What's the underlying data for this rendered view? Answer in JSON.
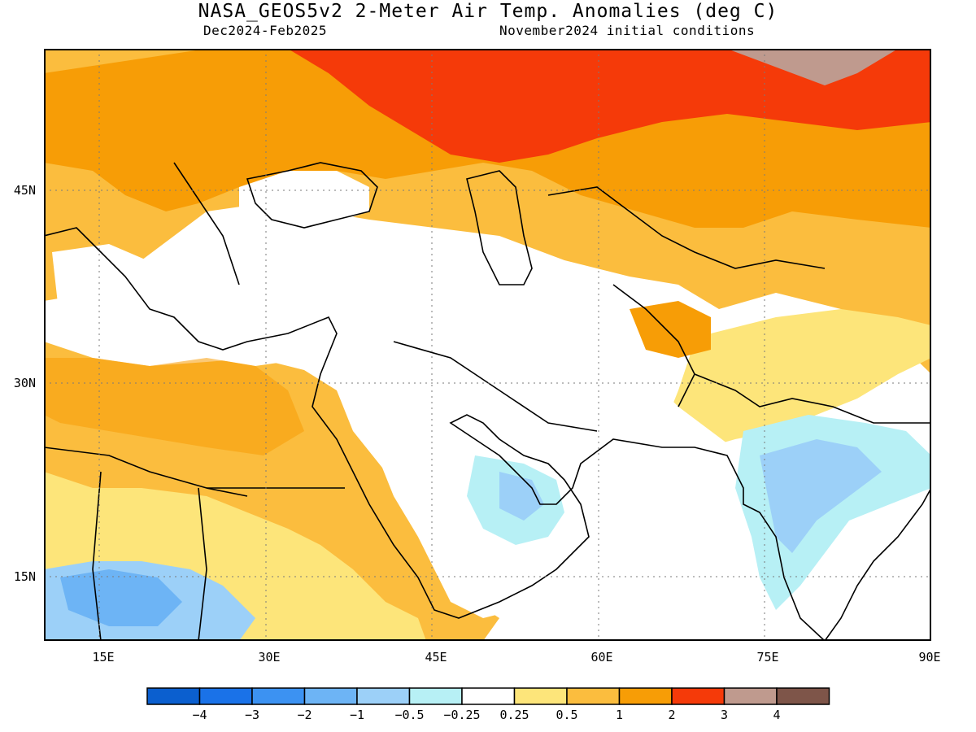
{
  "title": "NASA_GEOS5v2 2-Meter Air Temp. Anomalies (deg C)",
  "subtitle_left": "Dec2024-Feb2025",
  "subtitle_right": "November2024 initial conditions",
  "map": {
    "lon_range": [
      10,
      90
    ],
    "lat_range": [
      10,
      55
    ],
    "lat_labels": [
      "45N",
      "30N",
      "15N"
    ],
    "lon_labels": [
      "15E",
      "30E",
      "45E",
      "60E",
      "75E",
      "90E"
    ],
    "gridlines": "dotted",
    "regions": [
      {
        "name": "Russia / Kazakhstan north",
        "anomaly_class": "2 to 3"
      },
      {
        "name": "far north-east corner",
        "anomaly_class": "3 to 4"
      },
      {
        "name": "Europe / Kazakhstan",
        "anomaly_class": "1 to 2"
      },
      {
        "name": "North Africa",
        "anomaly_class": "0.5 to 1"
      },
      {
        "name": "Saudi / Arabian Gulf",
        "anomaly_class": "-0.25 to 0.25"
      },
      {
        "name": "Oman / UAE",
        "anomaly_class": "-1 to -0.5"
      },
      {
        "name": "central India",
        "anomaly_class": "-1 to -0.5"
      },
      {
        "name": "Sahel",
        "anomaly_class": "-2 to -1"
      }
    ]
  },
  "colorbar": {
    "colors": [
      "#0b5fcf",
      "#1a72e8",
      "#3c92f2",
      "#6db4f5",
      "#9cd0f8",
      "#b7f0f5",
      "#ffffff",
      "#fde57a",
      "#fbbd3e",
      "#f79d06",
      "#f53a09",
      "#bf9a8e",
      "#7e5549"
    ],
    "labels": [
      "−4",
      "−3",
      "−2",
      "−1",
      "−0.5",
      "−0.25",
      "0.25",
      "0.5",
      "1",
      "2",
      "3",
      "4"
    ]
  }
}
